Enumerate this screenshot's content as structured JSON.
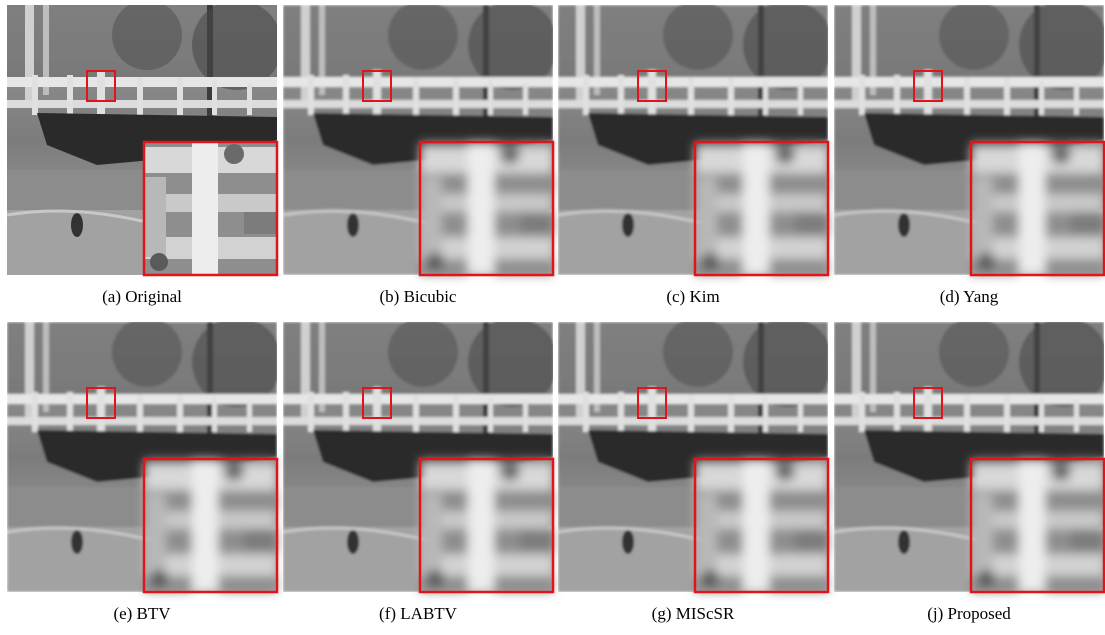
{
  "figure": {
    "panels": [
      {
        "caption": "(a) Original"
      },
      {
        "caption": "(b) Bicubic"
      },
      {
        "caption": "(c) Kim"
      },
      {
        "caption": "(d) Yang"
      },
      {
        "caption": "(e) BTV"
      },
      {
        "caption": "(f) LABTV"
      },
      {
        "caption": "(g) MIScSR"
      },
      {
        "caption": "(j) Proposed"
      }
    ]
  }
}
